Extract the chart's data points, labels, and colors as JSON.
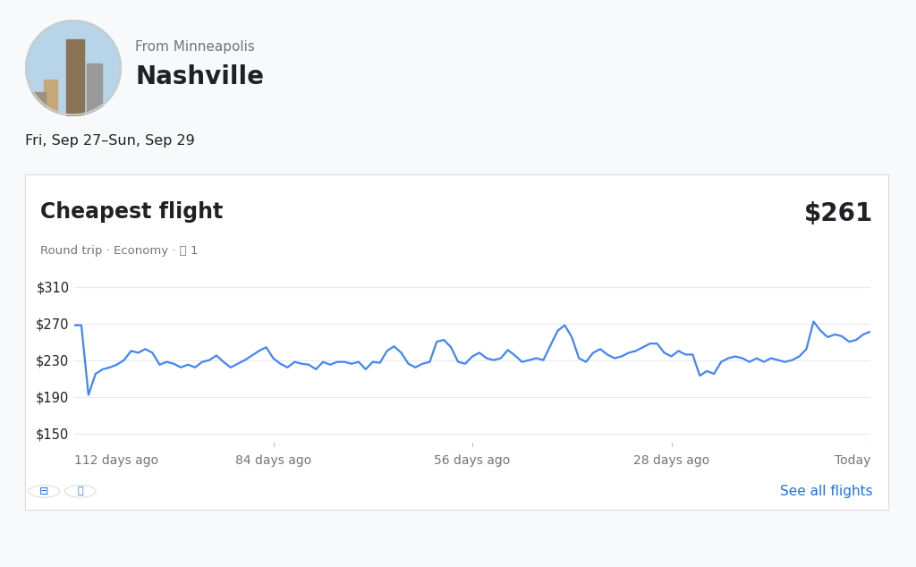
{
  "title_from": "From Minneapolis",
  "title_dest": "Nashville",
  "date_range": "Fri, Sep 27–Sun, Sep 29",
  "cheapest_label": "Cheapest flight",
  "price_label": "$261",
  "subtitle": "Round trip · Economy · ♈2 1",
  "see_all": "See all flights",
  "line_color": "#4285F4",
  "bg_color": "#f8f9fa",
  "card_bg": "#ffffff",
  "card_border": "#dadce0",
  "grid_color": "#e8eaed",
  "ytick_labels": [
    "$150",
    "$190",
    "$230",
    "$270",
    "$310"
  ],
  "ytick_values": [
    150,
    190,
    230,
    270,
    310
  ],
  "xtick_labels": [
    "112 days ago",
    "84 days ago",
    "56 days ago",
    "28 days ago",
    "Today"
  ],
  "xtick_positions": [
    0,
    28,
    56,
    84,
    112
  ],
  "ylim": [
    135,
    335
  ],
  "xlim": [
    0,
    112
  ],
  "prices": [
    268,
    268,
    192,
    215,
    220,
    222,
    225,
    230,
    240,
    238,
    242,
    238,
    225,
    228,
    226,
    222,
    225,
    222,
    228,
    230,
    235,
    228,
    222,
    226,
    230,
    235,
    240,
    244,
    232,
    226,
    222,
    228,
    226,
    225,
    220,
    228,
    225,
    228,
    228,
    226,
    228,
    220,
    228,
    227,
    240,
    245,
    238,
    226,
    222,
    226,
    228,
    250,
    252,
    244,
    228,
    226,
    234,
    238,
    232,
    230,
    232,
    241,
    235,
    228,
    230,
    232,
    230,
    246,
    262,
    268,
    255,
    232,
    228,
    238,
    242,
    236,
    232,
    234,
    238,
    240,
    244,
    248,
    248,
    238,
    234,
    240,
    236,
    236,
    213,
    218,
    215,
    228,
    232,
    234,
    232,
    228,
    232,
    228,
    232,
    230,
    228,
    230,
    234,
    242,
    272,
    262,
    255,
    258,
    256,
    250,
    252,
    258,
    261
  ],
  "text_color_dark": "#202124",
  "text_color_gray": "#70757a",
  "text_color_blue": "#1a73e8",
  "subtitle_text": "Round trip · Economy ·  1"
}
